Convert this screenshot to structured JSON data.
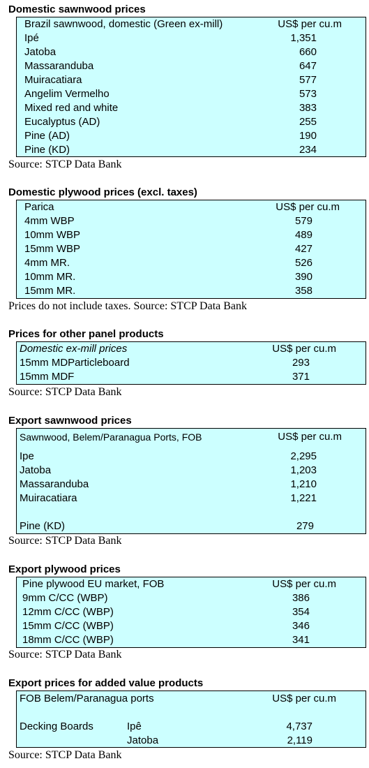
{
  "domestic_sawnwood": {
    "title": "Domestic sawnwood prices",
    "header": {
      "label": "Brazil sawnwood, domestic (Green ex-mill)",
      "value": "US$ per cu.m"
    },
    "rows": [
      {
        "label": "Ipé",
        "value": "1,351"
      },
      {
        "label": "Jatoba",
        "value": "660"
      },
      {
        "label": "Massaranduba",
        "value": "647"
      },
      {
        "label": "Muiracatiara",
        "value": "577"
      },
      {
        "label": "Angelim Vermelho",
        "value": "573"
      },
      {
        "label": "Mixed red and white",
        "value": "383"
      },
      {
        "label": "Eucalyptus (AD)",
        "value": "255"
      },
      {
        "label": "Pine (AD)",
        "value": "190"
      },
      {
        "label": "Pine (KD)",
        "value": "234"
      }
    ],
    "source": "Source: STCP Data Bank"
  },
  "domestic_plywood": {
    "title": "Domestic plywood prices (excl. taxes)",
    "header": {
      "label": "Parica",
      "value": "US$ per cu.m"
    },
    "rows": [
      {
        "label": "4mm WBP",
        "value": "579"
      },
      {
        "label": "10mm WBP",
        "value": "489"
      },
      {
        "label": "15mm WBP",
        "value": "427"
      },
      {
        "label": "4mm MR.",
        "value": "526"
      },
      {
        "label": "10mm MR.",
        "value": "390"
      },
      {
        "label": "15mm MR.",
        "value": "358"
      }
    ],
    "source": "Prices do not include taxes. Source: STCP Data Bank"
  },
  "other_panels": {
    "title": "Prices for other panel products",
    "header": {
      "label": "Domestic ex-mill prices",
      "value": "US$ per cu.m"
    },
    "rows": [
      {
        "label": "15mm MDParticleboard",
        "value": "293"
      },
      {
        "label": "15mm MDF",
        "value": "371"
      }
    ],
    "source": "Source: STCP Data Bank"
  },
  "export_sawnwood": {
    "title": "Export sawnwood prices",
    "header": {
      "label": "Sawnwood, Belem/Paranagua Ports, FOB",
      "value": "US$ per cu.m"
    },
    "rows": [
      {
        "label": "Ipe",
        "value": "2,295"
      },
      {
        "label": "Jatoba",
        "value": "1,203"
      },
      {
        "label": "Massaranduba",
        "value": "1,210"
      },
      {
        "label": "Muiracatiara",
        "value": "1,221"
      },
      {
        "label": "Pine (KD)",
        "value": "279"
      }
    ],
    "source": "Source: STCP Data Bank"
  },
  "export_plywood": {
    "title": "Export plywood prices",
    "header": {
      "label": "Pine plywood EU market, FOB",
      "value": "US$ per cu.m"
    },
    "rows": [
      {
        "label": "9mm C/CC (WBP)",
        "value": "386"
      },
      {
        "label": "12mm C/CC (WBP)",
        "value": "354"
      },
      {
        "label": "15mm C/CC (WBP)",
        "value": "346"
      },
      {
        "label": "18mm C/CC (WBP)",
        "value": "341"
      }
    ],
    "source": "Source: STCP Data Bank"
  },
  "added_value": {
    "title": "Export prices for added value products",
    "header": {
      "label": "FOB Belem/Paranagua ports",
      "value": "US$ per cu.m"
    },
    "group_label": "Decking Boards",
    "rows": [
      {
        "label": "Ipê",
        "value": "4,737"
      },
      {
        "label": "Jatoba",
        "value": "2,119"
      }
    ],
    "source": "Source: STCP Data Bank"
  }
}
